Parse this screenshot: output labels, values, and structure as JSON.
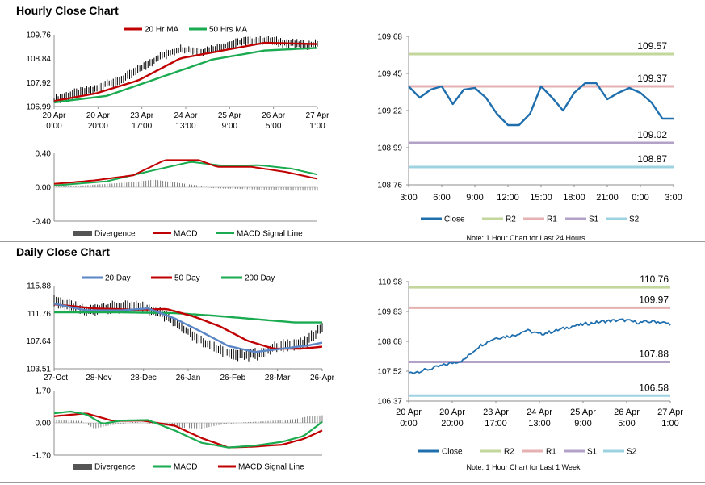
{
  "sections": {
    "hourly_title": "Hourly Close Chart",
    "daily_title": "Daily Close Chart"
  },
  "colors": {
    "ma_red": "#c00000",
    "ma_green": "#1aaa50",
    "ma_blue": "#5b86c6",
    "close_blue": "#1f6fae",
    "r2": "#c3d69b",
    "r1": "#e6b1b1",
    "s1": "#b3a2c7",
    "s2": "#9dd3e0",
    "hist": "#7f7f7f",
    "frame": "#8c8c8c"
  },
  "chart_data": [
    {
      "id": "hourly-price",
      "type": "line",
      "title": "Hourly Close Chart",
      "legend": [
        "20 Hr MA",
        "50 Hrs MA"
      ],
      "y_ticks": [
        "109.76",
        "108.84",
        "107.92",
        "106.99"
      ],
      "ylim": [
        106.99,
        109.76
      ],
      "x_ticks": [
        {
          "l1": "20 Apr",
          "l2": "0:00"
        },
        {
          "l1": "20 Apr",
          "l2": "20:00"
        },
        {
          "l1": "23 Apr",
          "l2": "17:00"
        },
        {
          "l1": "24 Apr",
          "l2": "13:00"
        },
        {
          "l1": "25 Apr",
          "l2": "9:00"
        },
        {
          "l1": "26 Apr",
          "l2": "5:00"
        },
        {
          "l1": "27 Apr",
          "l2": "1:00"
        }
      ],
      "price_keys": [
        [
          0,
          107.25
        ],
        [
          8,
          107.5
        ],
        [
          16,
          107.65
        ],
        [
          20,
          107.9
        ],
        [
          24,
          107.95
        ],
        [
          32,
          108.4
        ],
        [
          40,
          108.9
        ],
        [
          48,
          109.2
        ],
        [
          56,
          109.1
        ],
        [
          64,
          109.3
        ],
        [
          72,
          109.5
        ],
        [
          80,
          109.55
        ],
        [
          88,
          109.45
        ],
        [
          96,
          109.35
        ],
        [
          100,
          109.4
        ]
      ],
      "series": [
        {
          "name": "20 Hr MA",
          "keys": [
            [
              0,
              107.2
            ],
            [
              16,
              107.5
            ],
            [
              32,
              108.0
            ],
            [
              48,
              108.85
            ],
            [
              64,
              109.15
            ],
            [
              80,
              109.45
            ],
            [
              100,
              109.4
            ]
          ]
        },
        {
          "name": "50 Hrs MA",
          "keys": [
            [
              0,
              107.15
            ],
            [
              20,
              107.4
            ],
            [
              40,
              108.1
            ],
            [
              60,
              108.8
            ],
            [
              80,
              109.15
            ],
            [
              100,
              109.25
            ]
          ]
        }
      ]
    },
    {
      "id": "hourly-macd",
      "type": "line",
      "y_ticks": [
        "0.40",
        "0.00",
        "-0.40"
      ],
      "ylim": [
        -0.4,
        0.4
      ],
      "legend": [
        "Divergence",
        "MACD",
        "MACD Signal Line"
      ],
      "series": [
        {
          "name": "MACD",
          "keys": [
            [
              0,
              0.04
            ],
            [
              15,
              0.08
            ],
            [
              30,
              0.14
            ],
            [
              42,
              0.32
            ],
            [
              55,
              0.32
            ],
            [
              62,
              0.24
            ],
            [
              75,
              0.24
            ],
            [
              88,
              0.18
            ],
            [
              100,
              0.1
            ]
          ]
        },
        {
          "name": "MACD Signal Line",
          "keys": [
            [
              0,
              0.02
            ],
            [
              20,
              0.07
            ],
            [
              35,
              0.18
            ],
            [
              52,
              0.3
            ],
            [
              65,
              0.25
            ],
            [
              78,
              0.26
            ],
            [
              90,
              0.22
            ],
            [
              100,
              0.15
            ]
          ]
        }
      ],
      "divergence": [
        [
          0,
          0.02
        ],
        [
          10,
          0.02
        ],
        [
          20,
          0.04
        ],
        [
          30,
          0.06
        ],
        [
          38,
          0.09
        ],
        [
          45,
          0.06
        ],
        [
          55,
          0.02
        ],
        [
          60,
          -0.01
        ],
        [
          70,
          -0.02
        ],
        [
          80,
          -0.03
        ],
        [
          90,
          -0.04
        ],
        [
          100,
          -0.04
        ]
      ]
    },
    {
      "id": "hourly-levels",
      "type": "line",
      "y_ticks": [
        "109.68",
        "109.45",
        "109.22",
        "108.99",
        "108.76"
      ],
      "ylim": [
        108.76,
        109.68
      ],
      "x_ticks": [
        "3:00",
        "6:00",
        "9:00",
        "12:00",
        "15:00",
        "18:00",
        "21:00",
        "0:00",
        "3:00"
      ],
      "close": [
        109.37,
        109.3,
        109.35,
        109.37,
        109.26,
        109.35,
        109.36,
        109.3,
        109.2,
        109.13,
        109.13,
        109.2,
        109.37,
        109.3,
        109.22,
        109.33,
        109.39,
        109.39,
        109.29,
        109.33,
        109.36,
        109.33,
        109.27,
        109.17,
        109.17
      ],
      "levels": [
        {
          "name": "R2",
          "value": 109.57,
          "label": "109.57"
        },
        {
          "name": "R1",
          "value": 109.37,
          "label": "109.37"
        },
        {
          "name": "S1",
          "value": 109.02,
          "label": "109.02"
        },
        {
          "name": "S2",
          "value": 108.87,
          "label": "108.87"
        }
      ],
      "legend": [
        "Close",
        "R2",
        "R1",
        "S1",
        "S2"
      ],
      "note": "Note: 1 Hour Chart for Last 24 Hours"
    },
    {
      "id": "daily-price",
      "type": "line",
      "title": "Daily Close Chart",
      "legend": [
        "20 Day",
        "50 Day",
        "200 Day"
      ],
      "y_ticks": [
        "115.88",
        "111.76",
        "107.64",
        "103.51"
      ],
      "ylim": [
        103.51,
        115.88
      ],
      "x_ticks": [
        "27-Oct",
        "28-Nov",
        "28-Dec",
        "26-Jan",
        "26-Feb",
        "28-Mar",
        "26-Apr"
      ],
      "price_keys": [
        [
          0,
          113.7
        ],
        [
          5,
          113.0
        ],
        [
          12,
          112.0
        ],
        [
          18,
          112.6
        ],
        [
          25,
          112.7
        ],
        [
          33,
          112.7
        ],
        [
          40,
          111.7
        ],
        [
          46,
          110.2
        ],
        [
          52,
          108.4
        ],
        [
          58,
          107.0
        ],
        [
          64,
          106.0
        ],
        [
          70,
          105.5
        ],
        [
          76,
          105.7
        ],
        [
          82,
          106.6
        ],
        [
          88,
          107.2
        ],
        [
          93,
          107.2
        ],
        [
          97,
          108.6
        ],
        [
          100,
          109.8
        ]
      ],
      "series": [
        {
          "name": "20 Day",
          "keys": [
            [
              0,
              113.2
            ],
            [
              12,
              112.2
            ],
            [
              25,
              112.2
            ],
            [
              35,
              112.5
            ],
            [
              45,
              111.0
            ],
            [
              55,
              109.0
            ],
            [
              65,
              106.9
            ],
            [
              75,
              106.0
            ],
            [
              85,
              106.5
            ],
            [
              95,
              107.0
            ],
            [
              100,
              107.4
            ]
          ]
        },
        {
          "name": "50 Day",
          "keys": [
            [
              0,
              113.1
            ],
            [
              15,
              112.5
            ],
            [
              30,
              112.3
            ],
            [
              42,
              112.4
            ],
            [
              52,
              111.3
            ],
            [
              62,
              109.8
            ],
            [
              72,
              107.7
            ],
            [
              82,
              106.5
            ],
            [
              92,
              106.5
            ],
            [
              100,
              106.8
            ]
          ]
        },
        {
          "name": "200 Day",
          "keys": [
            [
              0,
              111.9
            ],
            [
              25,
              111.9
            ],
            [
              45,
              111.8
            ],
            [
              60,
              111.4
            ],
            [
              75,
              110.9
            ],
            [
              90,
              110.4
            ],
            [
              100,
              110.4
            ]
          ]
        }
      ]
    },
    {
      "id": "daily-macd",
      "type": "line",
      "y_ticks": [
        "1.70",
        "0.00",
        "-1.70"
      ],
      "ylim": [
        -1.7,
        1.7
      ],
      "legend": [
        "Divergence",
        "MACD",
        "MACD Signal Line"
      ],
      "series": [
        {
          "name": "MACD",
          "keys": [
            [
              0,
              0.5
            ],
            [
              6,
              0.6
            ],
            [
              12,
              0.45
            ],
            [
              18,
              -0.05
            ],
            [
              25,
              0.12
            ],
            [
              35,
              0.15
            ],
            [
              45,
              -0.4
            ],
            [
              55,
              -1.05
            ],
            [
              65,
              -1.3
            ],
            [
              75,
              -1.2
            ],
            [
              85,
              -1.0
            ],
            [
              93,
              -0.7
            ],
            [
              100,
              0.05
            ]
          ]
        },
        {
          "name": "MACD Signal Line",
          "keys": [
            [
              0,
              0.35
            ],
            [
              12,
              0.5
            ],
            [
              22,
              0.1
            ],
            [
              33,
              0.12
            ],
            [
              45,
              -0.15
            ],
            [
              55,
              -0.8
            ],
            [
              65,
              -1.3
            ],
            [
              75,
              -1.25
            ],
            [
              85,
              -1.15
            ],
            [
              93,
              -0.85
            ],
            [
              100,
              -0.4
            ]
          ]
        }
      ],
      "divergence": [
        [
          0,
          0.15
        ],
        [
          10,
          0.1
        ],
        [
          15,
          -0.3
        ],
        [
          20,
          -0.15
        ],
        [
          30,
          0.05
        ],
        [
          40,
          -0.1
        ],
        [
          47,
          -0.25
        ],
        [
          55,
          -0.3
        ],
        [
          62,
          -0.1
        ],
        [
          70,
          0.02
        ],
        [
          80,
          0.1
        ],
        [
          90,
          0.2
        ],
        [
          95,
          0.35
        ],
        [
          100,
          0.4
        ]
      ]
    },
    {
      "id": "daily-levels",
      "type": "line",
      "y_ticks": [
        "110.98",
        "109.83",
        "108.68",
        "107.52",
        "106.37"
      ],
      "ylim": [
        106.37,
        110.98
      ],
      "x_ticks": [
        {
          "l1": "20 Apr",
          "l2": "0:00"
        },
        {
          "l1": "20 Apr",
          "l2": "20:00"
        },
        {
          "l1": "23 Apr",
          "l2": "17:00"
        },
        {
          "l1": "24 Apr",
          "l2": "13:00"
        },
        {
          "l1": "25 Apr",
          "l2": "9:00"
        },
        {
          "l1": "26 Apr",
          "l2": "5:00"
        },
        {
          "l1": "27 Apr",
          "l2": "1:00"
        }
      ],
      "close_keys": [
        [
          0,
          107.45
        ],
        [
          3,
          107.5
        ],
        [
          8,
          107.6
        ],
        [
          15,
          107.8
        ],
        [
          21,
          107.95
        ],
        [
          27,
          108.5
        ],
        [
          33,
          108.8
        ],
        [
          40,
          108.9
        ],
        [
          45,
          109.1
        ],
        [
          50,
          108.95
        ],
        [
          55,
          109.05
        ],
        [
          62,
          109.25
        ],
        [
          68,
          109.35
        ],
        [
          75,
          109.45
        ],
        [
          82,
          109.5
        ],
        [
          88,
          109.4
        ],
        [
          94,
          109.45
        ],
        [
          100,
          109.35
        ]
      ],
      "levels": [
        {
          "name": "R2",
          "value": 110.76,
          "label": "110.76"
        },
        {
          "name": "R1",
          "value": 109.97,
          "label": "109.97"
        },
        {
          "name": "S1",
          "value": 107.88,
          "label": "107.88"
        },
        {
          "name": "S2",
          "value": 106.58,
          "label": "106.58"
        }
      ],
      "legend": [
        "Close",
        "R2",
        "R1",
        "S1",
        "S2"
      ],
      "note": "Note: 1 Hour Chart for Last 1 Week"
    }
  ]
}
